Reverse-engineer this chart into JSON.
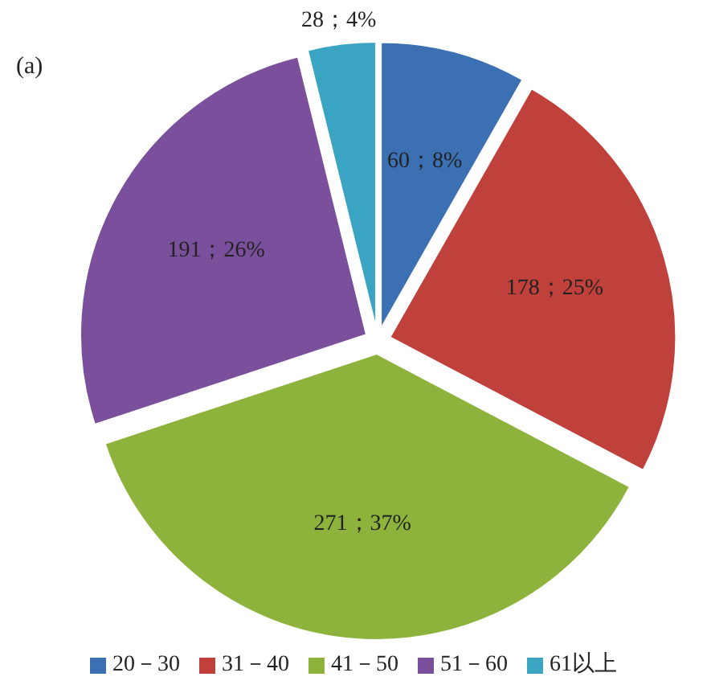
{
  "chart_data": {
    "type": "pie",
    "title": "(a)",
    "categories": [
      "20－30",
      "31－40",
      "41－50",
      "51－60",
      "61以上"
    ],
    "values": [
      60,
      178,
      271,
      191,
      28
    ],
    "colors": [
      "#3b70b3",
      "#c0413b",
      "#8db33c",
      "#7a4f9c",
      "#3ba4c2"
    ],
    "value_labels": [
      "60；8%",
      "178；25%",
      "271；37%",
      "191；26%",
      "28；4%"
    ],
    "legend": "bottom"
  }
}
